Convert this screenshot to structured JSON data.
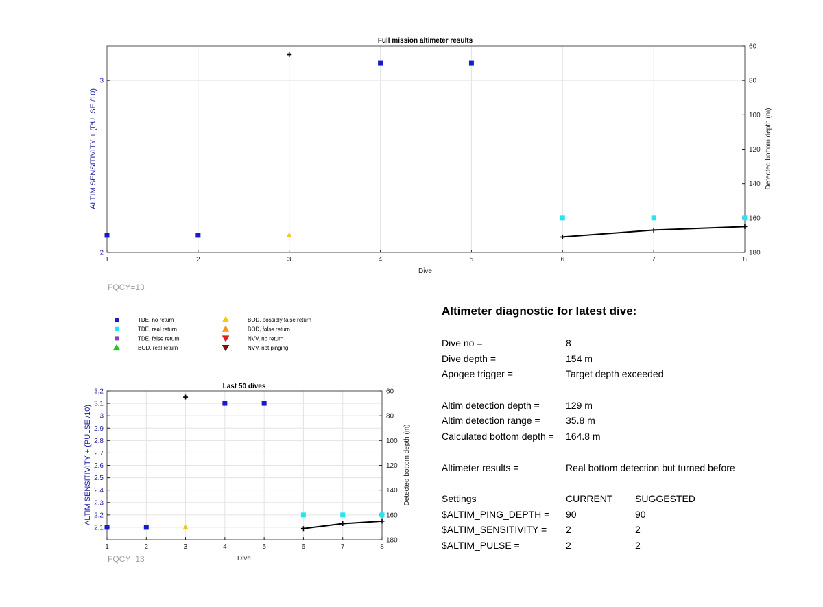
{
  "charts": {
    "main": {
      "title": "Full mission altimeter results",
      "xlabel": "Dive",
      "ylabel_left": "ALTIM SENSITIVITY + (PULSE /10)",
      "ylabel_right": "Detected bottom depth (m)",
      "footer": "FQCY=13"
    },
    "small": {
      "title": "Last 50 dives",
      "xlabel": "Dive",
      "ylabel_left": "ALTIM SENSITIVITY + (PULSE /10)",
      "ylabel_right": "Detected bottom depth (m)",
      "footer": "FQCY=13"
    }
  },
  "legend": [
    {
      "label": "TDE, no return",
      "marker": "square",
      "color": "#1a1acc"
    },
    {
      "label": "TDE, real return",
      "marker": "square",
      "color": "#22e6f2"
    },
    {
      "label": "TDE, false return",
      "marker": "square",
      "color": "#8a3fc8"
    },
    {
      "label": "BOD, real return",
      "marker": "triangle-up",
      "color": "#22c522"
    },
    {
      "label": "BOD, possibly false return",
      "marker": "triangle-up",
      "color": "#f2c81a"
    },
    {
      "label": "BOD, false return",
      "marker": "triangle-up",
      "color": "#f29a1a"
    },
    {
      "label": "NVV, no return",
      "marker": "triangle-down",
      "color": "#e02020"
    },
    {
      "label": "NVV, not pinging",
      "marker": "triangle-down",
      "color": "#7a1010"
    }
  ],
  "diagnostic": {
    "title": "Altimeter diagnostic for latest dive:",
    "dive_no": {
      "label": "Dive no =",
      "value": "8"
    },
    "dive_depth": {
      "label": "Dive depth =",
      "value": "154 m"
    },
    "apogee": {
      "label": "Apogee trigger =",
      "value": "Target depth exceeded"
    },
    "altim_depth": {
      "label": "Altim detection depth =",
      "value": "129 m"
    },
    "altim_range": {
      "label": "Altim detection range =",
      "value": "35.8 m"
    },
    "bottom_depth": {
      "label": "Calculated bottom depth =",
      "value": "164.8 m"
    },
    "results": {
      "label": "Altimeter results =",
      "value": "Real bottom detection but turned before"
    },
    "settings_header": {
      "label": "Settings",
      "current": "CURRENT",
      "suggested": "SUGGESTED"
    },
    "settings": [
      {
        "label": "$ALTIM_PING_DEPTH =",
        "current": "90",
        "suggested": "90"
      },
      {
        "label": "$ALTIM_SENSITIVITY =",
        "current": "2",
        "suggested": "2"
      },
      {
        "label": "$ALTIM_PULSE =",
        "current": "2",
        "suggested": "2"
      }
    ]
  },
  "chart_data": [
    {
      "type": "scatter",
      "title": "Full mission altimeter results",
      "xlabel": "Dive",
      "ylabel": "ALTIM SENSITIVITY + (PULSE /10)",
      "y2label": "Detected bottom depth (m)",
      "xlim": [
        1,
        8
      ],
      "ylim": [
        2,
        3.2
      ],
      "y2lim": [
        60,
        180
      ],
      "y2_reversed": true,
      "xticks": [
        1,
        2,
        3,
        4,
        5,
        6,
        7,
        8
      ],
      "yticks": [
        2,
        3
      ],
      "y2ticks": [
        60,
        80,
        100,
        120,
        140,
        160,
        180
      ],
      "grid": true,
      "series": [
        {
          "name": "TDE, no return",
          "axis": "left",
          "marker": "square",
          "color": "#1a1acc",
          "x": [
            1,
            2,
            4,
            5
          ],
          "y": [
            2.1,
            2.1,
            3.1,
            3.1
          ]
        },
        {
          "name": "TDE, real return",
          "axis": "left",
          "marker": "square",
          "color": "#22e6f2",
          "x": [
            6,
            7,
            8
          ],
          "y": [
            2.2,
            2.2,
            2.2
          ]
        },
        {
          "name": "BOD, possibly false return",
          "axis": "left",
          "marker": "triangle-up",
          "color": "#f2c81a",
          "x": [
            3
          ],
          "y": [
            2.1
          ]
        },
        {
          "axis": "right",
          "marker": "plus",
          "color": "#000000",
          "x": [
            3
          ],
          "y": [
            65
          ]
        },
        {
          "axis": "right",
          "style": "line",
          "color": "#000000",
          "x": [
            6,
            7,
            8
          ],
          "y": [
            171,
            167,
            165
          ]
        }
      ]
    },
    {
      "type": "scatter",
      "title": "Last 50 dives",
      "xlabel": "Dive",
      "ylabel": "ALTIM SENSITIVITY + (PULSE /10)",
      "y2label": "Detected bottom depth (m)",
      "xlim": [
        1,
        8
      ],
      "ylim": [
        2.0,
        3.2
      ],
      "y2lim": [
        60,
        180
      ],
      "y2_reversed": true,
      "xticks": [
        1,
        2,
        3,
        4,
        5,
        6,
        7,
        8
      ],
      "yticks": [
        2.1,
        2.2,
        2.3,
        2.4,
        2.5,
        2.6,
        2.7,
        2.8,
        2.9,
        3,
        3.1,
        3.2
      ],
      "y2ticks": [
        60,
        80,
        100,
        120,
        140,
        160,
        180
      ],
      "grid": true,
      "series": [
        {
          "name": "TDE, no return",
          "axis": "left",
          "marker": "square",
          "color": "#1a1acc",
          "x": [
            1,
            2,
            4,
            5
          ],
          "y": [
            2.1,
            2.1,
            3.1,
            3.1
          ]
        },
        {
          "name": "TDE, real return",
          "axis": "left",
          "marker": "square",
          "color": "#22e6f2",
          "x": [
            6,
            7,
            8
          ],
          "y": [
            2.2,
            2.2,
            2.2
          ]
        },
        {
          "name": "BOD, possibly false return",
          "axis": "left",
          "marker": "triangle-up",
          "color": "#f2c81a",
          "x": [
            3
          ],
          "y": [
            2.1
          ]
        },
        {
          "axis": "right",
          "marker": "plus",
          "color": "#000000",
          "x": [
            3
          ],
          "y": [
            65
          ]
        },
        {
          "axis": "right",
          "style": "line",
          "color": "#000000",
          "x": [
            6,
            7,
            8
          ],
          "y": [
            171,
            167,
            165
          ]
        }
      ]
    }
  ]
}
